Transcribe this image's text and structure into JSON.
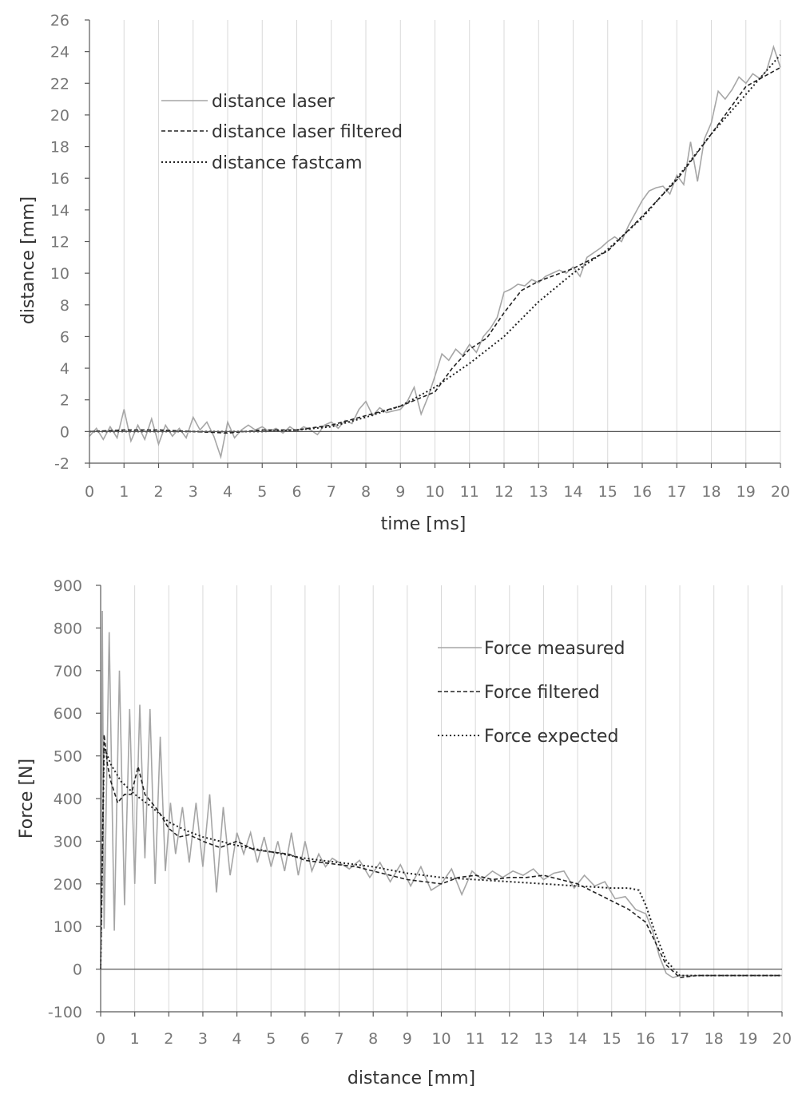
{
  "chart_data": [
    {
      "type": "line",
      "title": "",
      "xlabel": "time [ms]",
      "ylabel": "distance [mm]",
      "xlim": [
        0,
        20
      ],
      "ylim": [
        -2,
        26
      ],
      "x_ticks": [
        0,
        1,
        2,
        3,
        4,
        5,
        6,
        7,
        8,
        9,
        10,
        11,
        12,
        13,
        14,
        15,
        16,
        17,
        18,
        19,
        20
      ],
      "y_ticks": [
        -2,
        0,
        2,
        4,
        6,
        8,
        10,
        12,
        14,
        16,
        18,
        20,
        22,
        24,
        26
      ],
      "grid": "vertical",
      "legend_position": "top-left",
      "series": [
        {
          "name": "distance laser",
          "style": "solid-gray",
          "color": "#a6a6a6",
          "x": [
            0,
            0.2,
            0.4,
            0.6,
            0.8,
            1.0,
            1.2,
            1.4,
            1.6,
            1.8,
            2.0,
            2.2,
            2.4,
            2.6,
            2.8,
            3.0,
            3.2,
            3.4,
            3.6,
            3.8,
            4.0,
            4.2,
            4.4,
            4.6,
            4.8,
            5.0,
            5.2,
            5.4,
            5.6,
            5.8,
            6.0,
            6.2,
            6.4,
            6.6,
            6.8,
            7.0,
            7.2,
            7.4,
            7.6,
            7.8,
            8.0,
            8.2,
            8.4,
            8.6,
            8.8,
            9.0,
            9.2,
            9.4,
            9.6,
            9.8,
            10.0,
            10.2,
            10.4,
            10.6,
            10.8,
            11.0,
            11.2,
            11.4,
            11.6,
            11.8,
            12.0,
            12.2,
            12.4,
            12.6,
            12.8,
            13.0,
            13.2,
            13.4,
            13.6,
            13.8,
            14.0,
            14.2,
            14.4,
            14.6,
            14.8,
            15.0,
            15.2,
            15.4,
            15.6,
            15.8,
            16.0,
            16.2,
            16.4,
            16.6,
            16.8,
            17.0,
            17.2,
            17.4,
            17.6,
            17.8,
            18.0,
            18.2,
            18.4,
            18.6,
            18.8,
            19.0,
            19.2,
            19.4,
            19.6,
            19.8,
            20.0
          ],
          "values": [
            -0.3,
            0.2,
            -0.5,
            0.3,
            -0.4,
            1.4,
            -0.6,
            0.4,
            -0.5,
            0.8,
            -0.8,
            0.4,
            -0.3,
            0.2,
            -0.4,
            0.9,
            0.1,
            0.6,
            -0.3,
            -1.6,
            0.6,
            -0.4,
            0.1,
            0.4,
            0.1,
            0.3,
            0.0,
            0.2,
            -0.1,
            0.3,
            0.0,
            0.3,
            0.1,
            -0.2,
            0.4,
            0.6,
            0.2,
            0.7,
            0.5,
            1.4,
            1.9,
            1.0,
            1.5,
            1.2,
            1.3,
            1.4,
            1.9,
            2.8,
            1.1,
            2.2,
            3.5,
            4.9,
            4.5,
            5.2,
            4.8,
            5.5,
            5.0,
            6.0,
            6.5,
            7.2,
            8.8,
            9.0,
            9.3,
            9.2,
            9.6,
            9.4,
            9.8,
            10.0,
            10.2,
            10.0,
            10.4,
            9.8,
            11.0,
            11.3,
            11.6,
            12.0,
            12.3,
            12.0,
            13.0,
            13.8,
            14.6,
            15.2,
            15.4,
            15.5,
            15.0,
            16.2,
            15.6,
            18.3,
            15.8,
            18.5,
            19.5,
            21.5,
            21.0,
            21.6,
            22.4,
            22.0,
            22.6,
            22.3,
            22.8,
            24.3,
            23.0
          ]
        },
        {
          "name": "distance laser filtered",
          "style": "dashed",
          "color": "#222222",
          "x": [
            0,
            1,
            2,
            3,
            4,
            5,
            6,
            7,
            8,
            9,
            10,
            10.5,
            11,
            11.5,
            12,
            12.5,
            13,
            14,
            15,
            16,
            17,
            18,
            19,
            20
          ],
          "values": [
            0.0,
            0.1,
            0.1,
            0.0,
            -0.1,
            0.1,
            0.1,
            0.4,
            1.0,
            1.6,
            2.5,
            4.0,
            5.2,
            5.9,
            7.5,
            8.9,
            9.5,
            10.3,
            11.4,
            13.6,
            15.9,
            18.8,
            21.8,
            23.0
          ]
        },
        {
          "name": "distance fastcam",
          "style": "dotted",
          "color": "#222222",
          "x": [
            0,
            1,
            2,
            3,
            4,
            5,
            6,
            7,
            8,
            9,
            10,
            11,
            12,
            13,
            14,
            15,
            16,
            17,
            18,
            19,
            20
          ],
          "values": [
            0.0,
            0.0,
            0.0,
            0.0,
            0.0,
            0.0,
            0.1,
            0.3,
            0.9,
            1.6,
            2.8,
            4.3,
            6.0,
            8.2,
            10.0,
            11.5,
            13.5,
            16.0,
            18.8,
            21.3,
            23.8
          ]
        }
      ]
    },
    {
      "type": "line",
      "title": "",
      "xlabel": "distance [mm]",
      "ylabel": "Force [N]",
      "xlim": [
        0,
        20
      ],
      "ylim": [
        -100,
        900
      ],
      "x_ticks": [
        0,
        1,
        2,
        3,
        4,
        5,
        6,
        7,
        8,
        9,
        10,
        11,
        12,
        13,
        14,
        15,
        16,
        17,
        18,
        19,
        20
      ],
      "y_ticks": [
        -100,
        0,
        100,
        200,
        300,
        400,
        500,
        600,
        700,
        800,
        900
      ],
      "grid": "vertical",
      "legend_position": "top-right",
      "series": [
        {
          "name": "Force measured",
          "style": "solid-gray",
          "color": "#a6a6a6",
          "x": [
            0,
            0.05,
            0.1,
            0.25,
            0.4,
            0.55,
            0.7,
            0.85,
            1.0,
            1.15,
            1.3,
            1.45,
            1.6,
            1.75,
            1.9,
            2.05,
            2.2,
            2.4,
            2.6,
            2.8,
            3.0,
            3.2,
            3.4,
            3.6,
            3.8,
            4.0,
            4.2,
            4.4,
            4.6,
            4.8,
            5.0,
            5.2,
            5.4,
            5.6,
            5.8,
            6.0,
            6.2,
            6.4,
            6.6,
            6.8,
            7.0,
            7.3,
            7.6,
            7.9,
            8.2,
            8.5,
            8.8,
            9.1,
            9.4,
            9.7,
            10.0,
            10.3,
            10.6,
            10.9,
            11.2,
            11.5,
            11.8,
            12.1,
            12.4,
            12.7,
            13.0,
            13.3,
            13.6,
            13.9,
            14.2,
            14.5,
            14.8,
            15.1,
            15.4,
            15.7,
            16.0,
            16.2,
            16.4,
            16.6,
            16.8,
            17.0,
            17.3,
            17.6,
            17.9,
            18.2,
            18.5,
            18.8,
            19.1,
            19.4,
            19.7,
            20.0
          ],
          "values": [
            0,
            840,
            95,
            790,
            90,
            700,
            150,
            610,
            200,
            620,
            260,
            610,
            200,
            545,
            230,
            390,
            270,
            380,
            250,
            390,
            240,
            410,
            180,
            380,
            220,
            320,
            270,
            320,
            250,
            310,
            240,
            300,
            230,
            320,
            220,
            300,
            230,
            270,
            240,
            260,
            250,
            235,
            255,
            215,
            250,
            205,
            245,
            195,
            240,
            185,
            200,
            235,
            175,
            230,
            210,
            230,
            215,
            230,
            220,
            235,
            210,
            225,
            230,
            190,
            220,
            195,
            205,
            165,
            170,
            140,
            130,
            90,
            30,
            -10,
            -20,
            -15,
            -15,
            -15,
            -15,
            -15,
            -15,
            -15,
            -15,
            -15,
            -15,
            -15
          ]
        },
        {
          "name": "Force filtered",
          "style": "dashed",
          "color": "#222222",
          "x": [
            0,
            0.1,
            0.2,
            0.3,
            0.5,
            0.7,
            0.9,
            1.1,
            1.3,
            1.5,
            1.7,
            2.0,
            2.3,
            2.6,
            3.0,
            3.5,
            4.0,
            4.5,
            5.0,
            5.5,
            6.0,
            6.5,
            7.0,
            7.5,
            8.0,
            8.5,
            9.0,
            9.5,
            10.0,
            10.5,
            11.0,
            11.5,
            12.0,
            12.5,
            13.0,
            13.5,
            14.0,
            14.5,
            15.0,
            15.5,
            16.0,
            16.3,
            16.6,
            17.0,
            17.5,
            18.0,
            18.5,
            19.0,
            19.5,
            20.0
          ],
          "values": [
            0,
            550,
            480,
            440,
            390,
            410,
            410,
            475,
            410,
            390,
            370,
            330,
            310,
            315,
            300,
            285,
            300,
            280,
            275,
            270,
            255,
            250,
            245,
            240,
            230,
            220,
            210,
            205,
            200,
            215,
            220,
            210,
            215,
            215,
            220,
            210,
            200,
            180,
            160,
            140,
            110,
            60,
            10,
            -20,
            -15,
            -15,
            -15,
            -15,
            -15,
            -15
          ]
        },
        {
          "name": "Force expected",
          "style": "dotted",
          "color": "#222222",
          "x": [
            0,
            0.1,
            0.3,
            0.6,
            1.0,
            1.5,
            2.0,
            2.5,
            3.0,
            4.0,
            5.0,
            6.0,
            7.0,
            8.0,
            9.0,
            10.0,
            11.0,
            12.0,
            13.0,
            14.0,
            15.0,
            15.5,
            15.8,
            16.0,
            16.3,
            16.6,
            17.0,
            17.5,
            18.0,
            18.5,
            19.0,
            19.5,
            20.0
          ],
          "values": [
            0,
            520,
            480,
            440,
            410,
            380,
            345,
            325,
            310,
            290,
            275,
            260,
            250,
            240,
            225,
            215,
            210,
            205,
            200,
            195,
            190,
            190,
            185,
            150,
            80,
            20,
            -15,
            -15,
            -15,
            -15,
            -15,
            -15,
            -15
          ]
        }
      ]
    }
  ]
}
